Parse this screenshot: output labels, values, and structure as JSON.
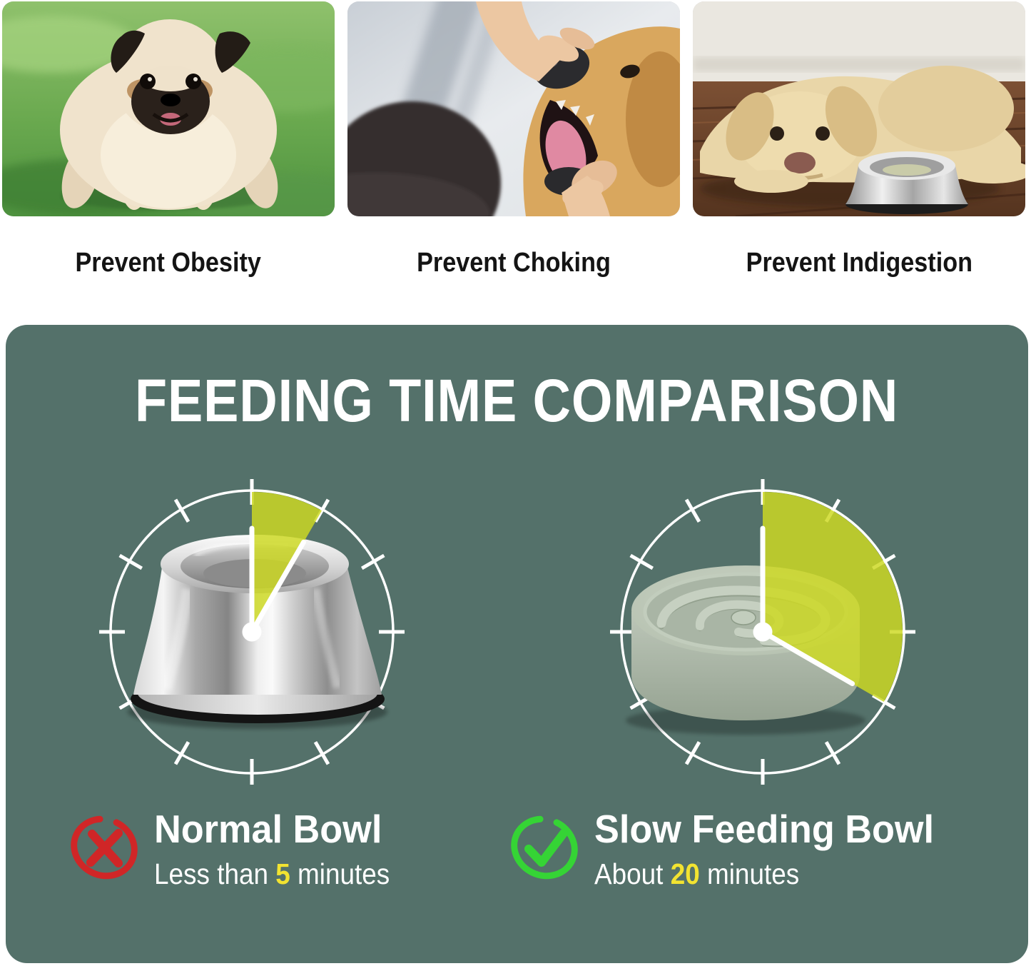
{
  "benefits": [
    {
      "label": "Prevent Obesity",
      "photo": "overweight-pug-on-grass"
    },
    {
      "label": "Prevent Choking",
      "photo": "golden-retriever-mouth-check"
    },
    {
      "label": "Prevent Indigestion",
      "photo": "labrador-lying-beside-steel-bowl"
    }
  ],
  "comparison": {
    "title": "FEEDING TIME COMPARISON",
    "panel_color": "#54716A",
    "wedge_color": "#CDD923",
    "wedge_opacity": 0.84,
    "clock_minutes_total": 60,
    "clocks": [
      {
        "name": "normal-bowl-clock",
        "bowl": "stainless-steel-bowl",
        "minutes": 5,
        "wedge_degrees": 30
      },
      {
        "name": "slow-feeding-bowl-clock",
        "bowl": "slow-feeder-maze-bowl",
        "minutes": 20,
        "wedge_degrees": 120
      }
    ],
    "legend": [
      {
        "icon": "cross-icon",
        "icon_color": "#D02627",
        "title": "Normal Bowl",
        "desc_prefix": "Less than ",
        "value": "5",
        "desc_suffix": " minutes",
        "value_color": "#F2E331"
      },
      {
        "icon": "check-icon",
        "icon_color": "#35D435",
        "title": "Slow Feeding Bowl",
        "desc_prefix": "About ",
        "value": "20",
        "desc_suffix": " minutes",
        "value_color": "#F2E331"
      }
    ]
  }
}
